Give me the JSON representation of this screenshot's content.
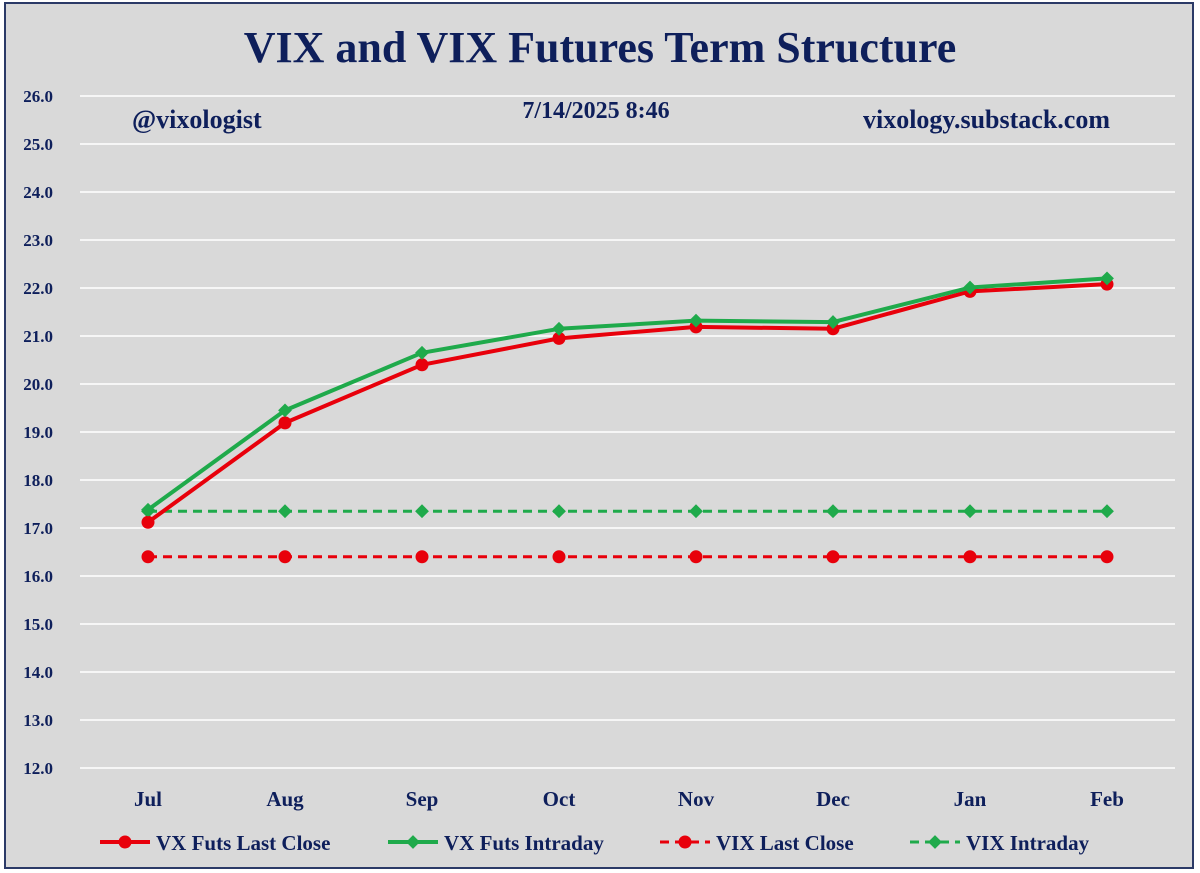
{
  "chart_data": {
    "type": "line",
    "title": "VIX and VIX Futures Term Structure",
    "annotations": {
      "left": "@vixologist",
      "center": "7/14/2025 8:46",
      "right": "vixology.substack.com"
    },
    "categories": [
      "Jul",
      "Aug",
      "Sep",
      "Oct",
      "Nov",
      "Dec",
      "Jan",
      "Feb"
    ],
    "ylim": [
      12.0,
      26.0
    ],
    "yticks": [
      "12.0",
      "13.0",
      "14.0",
      "15.0",
      "16.0",
      "17.0",
      "18.0",
      "19.0",
      "20.0",
      "21.0",
      "22.0",
      "23.0",
      "24.0",
      "25.0",
      "26.0"
    ],
    "grid": true,
    "legend_position": "bottom",
    "series": [
      {
        "name": "VX Futs Last Close",
        "values": [
          17.12,
          19.19,
          20.4,
          20.95,
          21.19,
          21.15,
          21.93,
          22.08
        ],
        "color": "#e8000b",
        "dash": false,
        "marker": "circle"
      },
      {
        "name": "VX Futs Intraday",
        "values": [
          17.38,
          19.45,
          20.65,
          21.15,
          21.32,
          21.29,
          22.01,
          22.2
        ],
        "color": "#1faa4b",
        "dash": false,
        "marker": "diamond"
      },
      {
        "name": "VIX Last Close",
        "values": [
          16.4,
          16.4,
          16.4,
          16.4,
          16.4,
          16.4,
          16.4,
          16.4
        ],
        "color": "#e8000b",
        "dash": true,
        "marker": "circle"
      },
      {
        "name": "VIX Intraday",
        "values": [
          17.35,
          17.35,
          17.35,
          17.35,
          17.35,
          17.35,
          17.35,
          17.35
        ],
        "color": "#1faa4b",
        "dash": true,
        "marker": "diamond"
      }
    ]
  }
}
